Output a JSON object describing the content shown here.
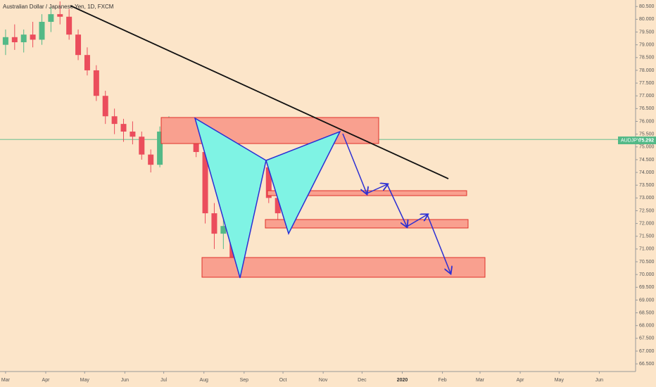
{
  "chart_data": {
    "type": "candlestick",
    "title": "Australian Dollar / Japanese Yen, 1D, FXCM",
    "symbol": "AUDJPY",
    "last_price": 75.292,
    "up_color": "#53b987",
    "down_color": "#eb4d5c",
    "x": [
      0,
      7,
      14,
      21,
      28,
      35,
      42,
      49,
      56,
      63,
      70,
      77,
      84,
      91,
      98,
      105,
      112,
      119,
      126,
      133,
      140,
      147,
      154,
      161,
      168,
      175,
      182,
      189,
      196,
      203,
      210,
      217,
      224,
      231,
      238,
      245
    ],
    "open": [
      79.0,
      79.3,
      79.1,
      79.4,
      79.2,
      79.9,
      80.2,
      80.1,
      79.4,
      78.6,
      78.0,
      77.0,
      76.2,
      75.9,
      75.6,
      75.4,
      74.7,
      74.3,
      75.6,
      75.7,
      75.8,
      75.9,
      74.8,
      72.4,
      71.6,
      71.9,
      70.6,
      72.6,
      73.8,
      74.2,
      73.0,
      72.4,
      72.6,
      73.6,
      74.2,
      74.8
    ],
    "high": [
      79.6,
      79.8,
      79.6,
      79.9,
      80.2,
      80.5,
      80.7,
      80.4,
      79.6,
      78.9,
      78.2,
      77.2,
      76.5,
      76.1,
      76.0,
      75.6,
      74.9,
      75.8,
      76.2,
      76.0,
      76.1,
      76.0,
      74.9,
      72.8,
      72.3,
      72.4,
      72.8,
      74.0,
      74.6,
      74.3,
      73.2,
      72.8,
      73.8,
      74.4,
      75.0,
      75.6
    ],
    "low": [
      78.6,
      78.8,
      78.7,
      78.9,
      79.0,
      79.5,
      79.8,
      79.2,
      78.4,
      77.8,
      76.8,
      75.9,
      75.5,
      75.2,
      75.1,
      74.5,
      74.0,
      74.2,
      75.3,
      75.2,
      75.4,
      74.6,
      72.0,
      71.0,
      71.0,
      70.0,
      70.5,
      72.5,
      73.4,
      72.8,
      72.0,
      71.9,
      72.5,
      73.4,
      74.0,
      74.6
    ],
    "close": [
      79.3,
      79.1,
      79.4,
      79.2,
      79.9,
      80.2,
      80.1,
      79.4,
      78.6,
      78.0,
      77.0,
      76.2,
      75.9,
      75.6,
      75.4,
      74.7,
      74.3,
      75.6,
      75.7,
      75.8,
      75.9,
      74.8,
      72.4,
      71.6,
      71.9,
      70.6,
      72.6,
      73.8,
      74.2,
      73.0,
      72.4,
      72.6,
      73.6,
      74.2,
      74.8,
      75.29
    ],
    "xlim": [
      -4.3,
      486
    ],
    "xticks": [
      {
        "value": 0,
        "label": "Mar"
      },
      {
        "value": 31,
        "label": "Apr"
      },
      {
        "value": 61,
        "label": "May"
      },
      {
        "value": 92,
        "label": "Jun"
      },
      {
        "value": 122,
        "label": "Jul"
      },
      {
        "value": 153,
        "label": "Aug"
      },
      {
        "value": 184,
        "label": "Sep"
      },
      {
        "value": 214,
        "label": "Oct"
      },
      {
        "value": 245,
        "label": "Nov"
      },
      {
        "value": 275,
        "label": "Dec"
      },
      {
        "value": 306,
        "label": "2020"
      },
      {
        "value": 337,
        "label": "Feb"
      },
      {
        "value": 366,
        "label": "Mar"
      },
      {
        "value": 397,
        "label": "Apr"
      },
      {
        "value": 427,
        "label": "May"
      },
      {
        "value": 458,
        "label": "Jun"
      }
    ],
    "ylim": [
      66.2,
      80.7
    ],
    "yticks": [
      {
        "value": 66.5,
        "label": "66.500"
      },
      {
        "value": 67,
        "label": "67.000"
      },
      {
        "value": 67.5,
        "label": "67.500"
      },
      {
        "value": 68,
        "label": "68.000"
      },
      {
        "value": 68.5,
        "label": "68.500"
      },
      {
        "value": 69,
        "label": "69.000"
      },
      {
        "value": 69.5,
        "label": "69.500"
      },
      {
        "value": 70,
        "label": "70.000"
      },
      {
        "value": 70.5,
        "label": "70.500"
      },
      {
        "value": 71,
        "label": "71.000"
      },
      {
        "value": 71.5,
        "label": "71.500"
      },
      {
        "value": 72,
        "label": "72.000"
      },
      {
        "value": 72.5,
        "label": "72.500"
      },
      {
        "value": 73,
        "label": "73.000"
      },
      {
        "value": 73.5,
        "label": "73.500"
      },
      {
        "value": 74,
        "label": "74.000"
      },
      {
        "value": 74.5,
        "label": "74.500"
      },
      {
        "value": 75,
        "label": "75.000"
      },
      {
        "value": 75.5,
        "label": "75.500"
      },
      {
        "value": 76,
        "label": "76.000"
      },
      {
        "value": 76.5,
        "label": "76.500"
      },
      {
        "value": 77,
        "label": "77.000"
      },
      {
        "value": 77.5,
        "label": "77.500"
      },
      {
        "value": 78,
        "label": "78.000"
      },
      {
        "value": 78.5,
        "label": "78.500"
      },
      {
        "value": 79,
        "label": "79.000"
      },
      {
        "value": 79.5,
        "label": "79.500"
      },
      {
        "value": 80,
        "label": "80.000"
      },
      {
        "value": 80.5,
        "label": "80.500"
      }
    ]
  }
}
